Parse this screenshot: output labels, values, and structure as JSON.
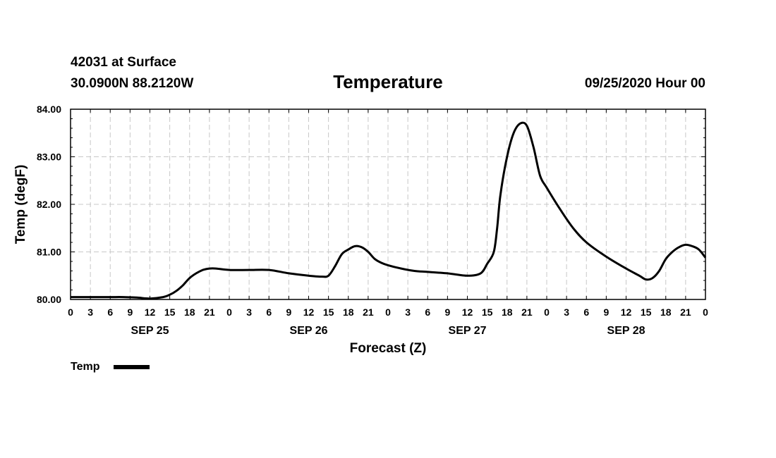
{
  "header": {
    "station": "42031 at Surface",
    "location": "30.0900N 88.2120W",
    "run": "09/25/2020 Hour 00"
  },
  "chart_data": {
    "type": "line",
    "title": "Temperature",
    "xlabel": "Forecast (Z)",
    "ylabel": "Temp (degF)",
    "x_unit": "forecast hour",
    "xlim": [
      0,
      96
    ],
    "ylim": [
      80.0,
      84.0
    ],
    "y_ticks": [
      "80.00",
      "81.00",
      "82.00",
      "83.00",
      "84.00"
    ],
    "y_tick_values": [
      80,
      81,
      82,
      83,
      84
    ],
    "x_tick_labels": [
      "0",
      "3",
      "6",
      "9",
      "12",
      "15",
      "18",
      "21",
      "0",
      "3",
      "6",
      "9",
      "12",
      "15",
      "18",
      "21",
      "0",
      "3",
      "6",
      "9",
      "12",
      "15",
      "18",
      "21",
      "0",
      "3",
      "6",
      "9",
      "12",
      "15",
      "18",
      "21",
      "0"
    ],
    "x_tick_values": [
      0,
      3,
      6,
      9,
      12,
      15,
      18,
      21,
      24,
      27,
      30,
      33,
      36,
      39,
      42,
      45,
      48,
      51,
      54,
      57,
      60,
      63,
      66,
      69,
      72,
      75,
      78,
      81,
      84,
      87,
      90,
      93,
      96
    ],
    "date_labels": [
      {
        "label": "SEP 25",
        "x": 12
      },
      {
        "label": "SEP 26",
        "x": 36
      },
      {
        "label": "SEP 27",
        "x": 60
      },
      {
        "label": "SEP 28",
        "x": 84
      }
    ],
    "grid": true,
    "legend_position": "bottom-left",
    "series": [
      {
        "name": "Temp",
        "color": "#000000",
        "x": [
          0,
          3,
          6,
          8,
          10,
          12,
          14,
          15,
          16,
          17,
          18,
          19,
          20,
          21,
          22,
          24,
          27,
          30,
          33,
          36,
          38,
          39,
          40,
          41,
          42,
          43,
          44,
          45,
          46,
          47,
          48,
          50,
          52,
          54,
          57,
          60,
          62,
          63,
          64,
          64.5,
          65,
          66,
          67,
          68,
          69,
          70,
          71,
          72,
          74,
          76,
          78,
          81,
          84,
          86,
          87,
          88,
          89,
          90,
          91,
          92,
          93,
          94,
          95,
          96
        ],
        "y": [
          80.05,
          80.05,
          80.05,
          80.05,
          80.04,
          80.02,
          80.05,
          80.1,
          80.18,
          80.3,
          80.45,
          80.55,
          80.62,
          80.65,
          80.65,
          80.62,
          80.62,
          80.62,
          80.55,
          80.5,
          80.48,
          80.5,
          80.7,
          80.95,
          81.05,
          81.12,
          81.1,
          81.0,
          80.85,
          80.77,
          80.72,
          80.65,
          80.6,
          80.58,
          80.55,
          80.5,
          80.55,
          80.75,
          81.0,
          81.5,
          82.2,
          83.0,
          83.5,
          83.7,
          83.65,
          83.2,
          82.6,
          82.35,
          81.9,
          81.5,
          81.2,
          80.9,
          80.65,
          80.5,
          80.42,
          80.45,
          80.6,
          80.85,
          81.0,
          81.1,
          81.15,
          81.12,
          81.05,
          80.88
        ]
      }
    ]
  }
}
